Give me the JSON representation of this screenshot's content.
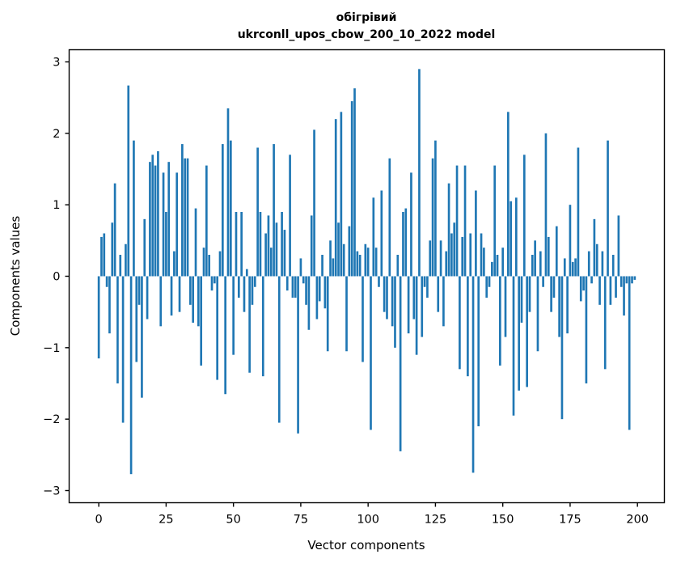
{
  "figure": {
    "title_line1": "обігрівий",
    "title_line2": "ukrconll_upos_cbow_200_10_2022 model",
    "xlabel": "Vector components",
    "ylabel": "Components values"
  },
  "chart_data": {
    "type": "bar",
    "title": "обігрівий\nukrconll_upos_cbow_200_10_2022 model",
    "xlabel": "Vector components",
    "ylabel": "Components values",
    "xlim": [
      -11,
      210
    ],
    "ylim": [
      -3.17,
      3.17
    ],
    "xticks": [
      0,
      25,
      50,
      75,
      100,
      125,
      150,
      175,
      200
    ],
    "yticks": [
      -3,
      -2,
      -1,
      0,
      1,
      2,
      3
    ],
    "grid": false,
    "legend": "none",
    "bar_color": "#1f77b4",
    "bar_width_units": 0.8,
    "x_is_index": true,
    "values": [
      -1.15,
      0.55,
      0.6,
      -0.15,
      -0.8,
      0.75,
      1.3,
      -1.5,
      0.3,
      -2.05,
      0.45,
      2.67,
      -2.77,
      1.9,
      -1.2,
      -0.4,
      -1.7,
      0.8,
      -0.6,
      1.6,
      1.7,
      1.55,
      1.75,
      -0.7,
      1.45,
      0.9,
      1.6,
      -0.55,
      0.35,
      1.45,
      -0.5,
      1.85,
      1.65,
      1.65,
      -0.4,
      -0.65,
      0.95,
      -0.7,
      -1.25,
      0.4,
      1.55,
      0.3,
      -0.2,
      -0.1,
      -1.45,
      0.35,
      1.85,
      -1.65,
      2.35,
      1.9,
      -1.1,
      0.9,
      -0.3,
      0.9,
      -0.5,
      0.1,
      -1.35,
      -0.4,
      -0.15,
      1.8,
      0.9,
      -1.4,
      0.6,
      0.85,
      0.4,
      1.85,
      0.75,
      -2.05,
      0.9,
      0.65,
      -0.2,
      1.7,
      -0.3,
      -0.3,
      -2.2,
      0.25,
      -0.1,
      -0.4,
      -0.75,
      0.85,
      2.05,
      -0.6,
      -0.35,
      0.3,
      -0.45,
      -1.05,
      0.5,
      0.25,
      2.2,
      0.75,
      2.3,
      0.45,
      -1.05,
      0.7,
      2.45,
      2.63,
      0.35,
      0.3,
      -1.2,
      0.45,
      0.4,
      -2.15,
      1.1,
      0.4,
      -0.15,
      1.2,
      -0.5,
      -0.6,
      1.65,
      -0.7,
      -1.0,
      0.3,
      -2.45,
      0.9,
      0.95,
      -0.8,
      1.45,
      -0.6,
      -1.1,
      2.9,
      -0.85,
      -0.15,
      -0.3,
      0.5,
      1.65,
      1.9,
      -0.5,
      0.5,
      -0.7,
      0.35,
      1.3,
      0.6,
      0.75,
      1.55,
      -1.3,
      0.55,
      1.55,
      -1.4,
      0.6,
      -2.75,
      1.2,
      -2.1,
      0.6,
      0.4,
      -0.3,
      -0.15,
      0.2,
      1.55,
      0.3,
      -1.25,
      0.4,
      -0.85,
      2.3,
      1.05,
      -1.95,
      1.1,
      -1.6,
      -0.65,
      1.7,
      -1.55,
      -0.5,
      0.3,
      0.5,
      -1.05,
      0.35,
      -0.15,
      2.0,
      0.55,
      -0.5,
      -0.3,
      0.7,
      -0.85,
      -2.0,
      0.25,
      -0.8,
      1.0,
      0.2,
      0.25,
      1.8,
      -0.35,
      -0.2,
      -1.5,
      0.35,
      -0.1,
      0.8,
      0.45,
      -0.4,
      0.35,
      -1.3,
      1.9,
      -0.4,
      0.3,
      -0.3,
      0.85,
      -0.15,
      -0.55,
      -0.1,
      -2.15,
      -0.1,
      -0.05
    ]
  }
}
